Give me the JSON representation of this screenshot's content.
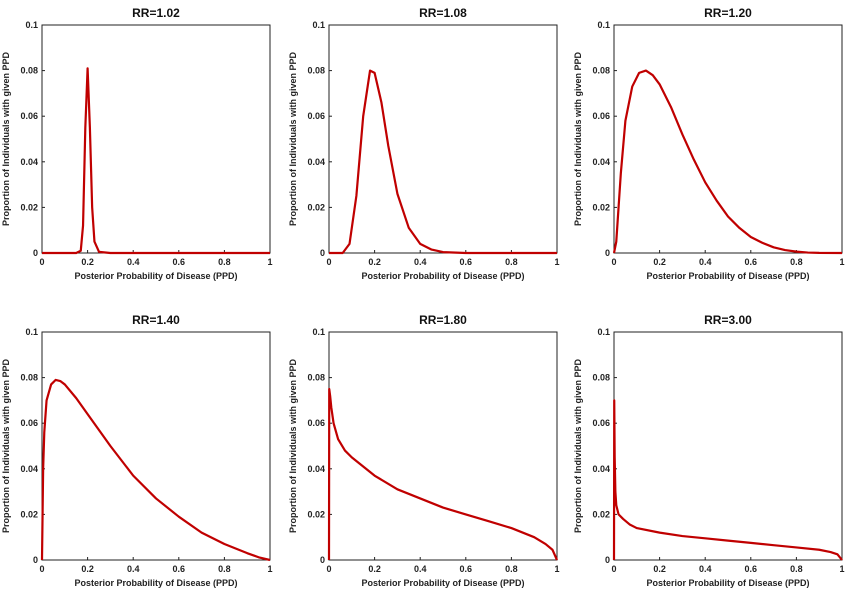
{
  "chart_data": [
    {
      "type": "line",
      "title": "RR=1.02",
      "xlabel": "Posterior Probability of Disease (PPD)",
      "ylabel": "Proportion of Individuals with given PPD",
      "xlim": [
        0,
        1
      ],
      "ylim": [
        0,
        0.1
      ],
      "xticks": [
        "0",
        "0.2",
        "0.4",
        "0.6",
        "0.8",
        "1"
      ],
      "yticks": [
        "0",
        "0.02",
        "0.04",
        "0.06",
        "0.08",
        "0.1"
      ],
      "x": [
        0,
        0.15,
        0.17,
        0.18,
        0.19,
        0.2,
        0.21,
        0.22,
        0.23,
        0.25,
        0.3,
        1
      ],
      "y": [
        0,
        0,
        0.001,
        0.012,
        0.055,
        0.081,
        0.055,
        0.02,
        0.005,
        0.0005,
        0,
        0
      ]
    },
    {
      "type": "line",
      "title": "RR=1.08",
      "xlabel": "Posterior Probability of Disease (PPD)",
      "ylabel": "Proportion of Individuals with given PPD",
      "xlim": [
        0,
        1
      ],
      "ylim": [
        0,
        0.1
      ],
      "xticks": [
        "0",
        "0.2",
        "0.4",
        "0.6",
        "0.8",
        "1"
      ],
      "yticks": [
        "0",
        "0.02",
        "0.04",
        "0.06",
        "0.08",
        "0.1"
      ],
      "x": [
        0,
        0.06,
        0.09,
        0.12,
        0.15,
        0.18,
        0.2,
        0.23,
        0.26,
        0.3,
        0.35,
        0.4,
        0.45,
        0.5,
        0.6,
        1
      ],
      "y": [
        0,
        0,
        0.004,
        0.025,
        0.06,
        0.08,
        0.079,
        0.066,
        0.047,
        0.026,
        0.011,
        0.004,
        0.0015,
        0.0004,
        0,
        0
      ]
    },
    {
      "type": "line",
      "title": "RR=1.20",
      "xlabel": "Posterior Probability of Disease (PPD)",
      "ylabel": "Proportion of Individuals with given PPD",
      "xlim": [
        0,
        1
      ],
      "ylim": [
        0,
        0.1
      ],
      "xticks": [
        "0",
        "0.2",
        "0.4",
        "0.6",
        "0.8",
        "1"
      ],
      "yticks": [
        "0",
        "0.02",
        "0.04",
        "0.06",
        "0.08",
        "0.1"
      ],
      "x": [
        0,
        0.01,
        0.03,
        0.05,
        0.08,
        0.11,
        0.14,
        0.17,
        0.2,
        0.25,
        0.3,
        0.35,
        0.4,
        0.45,
        0.5,
        0.55,
        0.6,
        0.65,
        0.7,
        0.75,
        0.8,
        0.85,
        0.9,
        1
      ],
      "y": [
        0,
        0.005,
        0.035,
        0.058,
        0.073,
        0.079,
        0.08,
        0.078,
        0.074,
        0.064,
        0.052,
        0.041,
        0.031,
        0.023,
        0.016,
        0.011,
        0.007,
        0.0045,
        0.0025,
        0.0013,
        0.0006,
        0.0002,
        5e-05,
        0
      ]
    },
    {
      "type": "line",
      "title": "RR=1.40",
      "xlabel": "Posterior Probability of Disease (PPD)",
      "ylabel": "Proportion of Individuals with given PPD",
      "xlim": [
        0,
        1
      ],
      "ylim": [
        0,
        0.1
      ],
      "xticks": [
        "0",
        "0.2",
        "0.4",
        "0.6",
        "0.8",
        "1"
      ],
      "yticks": [
        "0",
        "0.02",
        "0.04",
        "0.06",
        "0.08",
        "0.1"
      ],
      "x": [
        0,
        0.005,
        0.01,
        0.02,
        0.04,
        0.06,
        0.08,
        0.1,
        0.15,
        0.2,
        0.3,
        0.4,
        0.5,
        0.6,
        0.7,
        0.8,
        0.9,
        0.95,
        1
      ],
      "y": [
        0,
        0.04,
        0.056,
        0.07,
        0.077,
        0.079,
        0.0785,
        0.077,
        0.071,
        0.064,
        0.05,
        0.037,
        0.027,
        0.019,
        0.012,
        0.007,
        0.003,
        0.0012,
        0
      ]
    },
    {
      "type": "line",
      "title": "RR=1.80",
      "xlabel": "Posterior Probability of Disease (PPD)",
      "ylabel": "Proportion of Individuals with given PPD",
      "xlim": [
        0,
        1
      ],
      "ylim": [
        0,
        0.1
      ],
      "xticks": [
        "0",
        "0.2",
        "0.4",
        "0.6",
        "0.8",
        "1"
      ],
      "yticks": [
        "0",
        "0.02",
        "0.04",
        "0.06",
        "0.08",
        "0.1"
      ],
      "x": [
        0,
        0.001,
        0.005,
        0.01,
        0.02,
        0.04,
        0.07,
        0.1,
        0.15,
        0.2,
        0.3,
        0.4,
        0.5,
        0.6,
        0.7,
        0.8,
        0.9,
        0.95,
        0.98,
        1
      ],
      "y": [
        0,
        0.075,
        0.072,
        0.067,
        0.06,
        0.053,
        0.048,
        0.045,
        0.041,
        0.037,
        0.031,
        0.027,
        0.023,
        0.02,
        0.017,
        0.014,
        0.01,
        0.007,
        0.0045,
        0
      ]
    },
    {
      "type": "line",
      "title": "RR=3.00",
      "xlabel": "Posterior Probability of Disease (PPD)",
      "ylabel": "Proportion of Individuals with given PPD",
      "xlim": [
        0,
        1
      ],
      "ylim": [
        0,
        0.1
      ],
      "xticks": [
        "0",
        "0.2",
        "0.4",
        "0.6",
        "0.8",
        "1"
      ],
      "yticks": [
        "0",
        "0.02",
        "0.04",
        "0.06",
        "0.08",
        "0.1"
      ],
      "x": [
        0,
        0.001,
        0.003,
        0.006,
        0.01,
        0.02,
        0.04,
        0.07,
        0.1,
        0.2,
        0.3,
        0.4,
        0.5,
        0.6,
        0.7,
        0.8,
        0.9,
        0.95,
        0.98,
        1
      ],
      "y": [
        0,
        0.07,
        0.045,
        0.03,
        0.024,
        0.02,
        0.018,
        0.0155,
        0.014,
        0.012,
        0.0105,
        0.0095,
        0.0085,
        0.0075,
        0.0065,
        0.0055,
        0.0045,
        0.0035,
        0.0025,
        0
      ]
    }
  ]
}
